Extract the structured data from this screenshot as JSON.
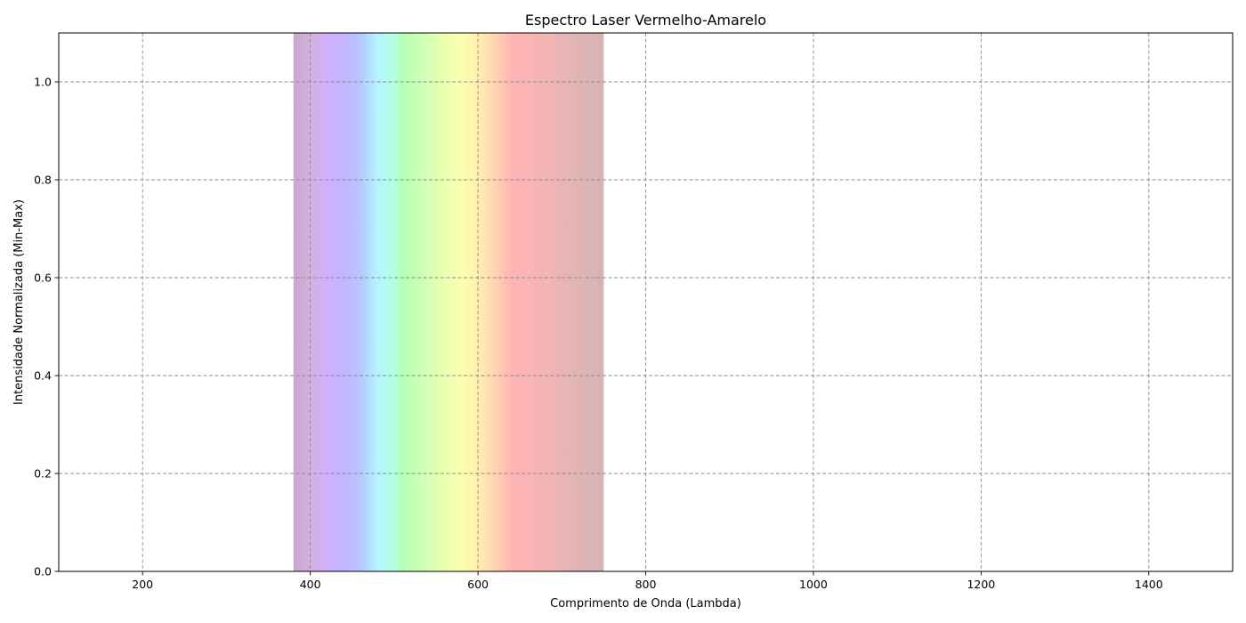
{
  "chart_data": {
    "type": "area",
    "title": "Espectro Laser Vermelho-Amarelo",
    "xlabel": "Comprimento de Onda (Lambda)",
    "ylabel": "Intensidade Normalizada (Min-Max)",
    "xlim": [
      100,
      1500
    ],
    "ylim": [
      0,
      1.1
    ],
    "x_ticks": [
      200,
      400,
      600,
      800,
      1000,
      1200,
      1400
    ],
    "y_ticks": [
      0.0,
      0.2,
      0.4,
      0.6,
      0.8,
      1.0
    ],
    "grid": true,
    "grid_style": "dashed",
    "visible_band": {
      "range": [
        380,
        750
      ],
      "stops": [
        {
          "wavelength": 380,
          "color": "#c8a8c8"
        },
        {
          "wavelength": 400,
          "color": "#d4b0e0"
        },
        {
          "wavelength": 420,
          "color": "#d0b0ff"
        },
        {
          "wavelength": 440,
          "color": "#c4b4ff"
        },
        {
          "wavelength": 460,
          "color": "#b4c8ff"
        },
        {
          "wavelength": 480,
          "color": "#b4f4ff"
        },
        {
          "wavelength": 500,
          "color": "#b4ffe0"
        },
        {
          "wavelength": 510,
          "color": "#b4ffb4"
        },
        {
          "wavelength": 540,
          "color": "#d4ffb4"
        },
        {
          "wavelength": 560,
          "color": "#ecffb0"
        },
        {
          "wavelength": 580,
          "color": "#fcffb0"
        },
        {
          "wavelength": 600,
          "color": "#fff0b0"
        },
        {
          "wavelength": 620,
          "color": "#ffd4b0"
        },
        {
          "wavelength": 640,
          "color": "#ffb4b4"
        },
        {
          "wavelength": 680,
          "color": "#f4b4b4"
        },
        {
          "wavelength": 720,
          "color": "#e0b4b4"
        },
        {
          "wavelength": 750,
          "color": "#d4b4b4"
        }
      ]
    }
  }
}
